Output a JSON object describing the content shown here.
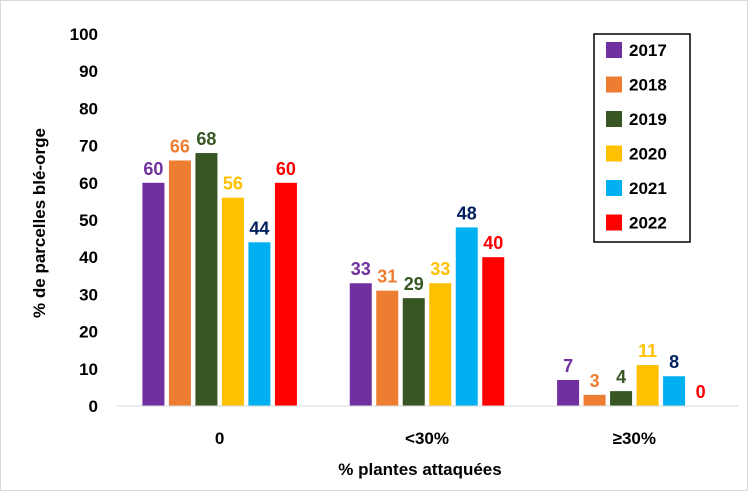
{
  "chart_data": {
    "type": "bar",
    "title": "",
    "xlabel": "% plantes attaquées",
    "ylabel": "% de parcelles blé-orge",
    "ylim": [
      0,
      100
    ],
    "yticks": [
      "0",
      "10",
      "20",
      "30",
      "40",
      "50",
      "60",
      "70",
      "80",
      "90",
      "100"
    ],
    "grid": false,
    "legend_position": "top-right",
    "categories": [
      "0",
      "<30%",
      "≥30%"
    ],
    "series": [
      {
        "name": "2017",
        "color": "#7030A0",
        "label_color": "#7030A0",
        "values": [
          60,
          33,
          7
        ]
      },
      {
        "name": "2018",
        "color": "#ED7D31",
        "label_color": "#ED7D31",
        "values": [
          66,
          31,
          3
        ]
      },
      {
        "name": "2019",
        "color": "#375623",
        "label_color": "#375623",
        "values": [
          68,
          29,
          4
        ]
      },
      {
        "name": "2020",
        "color": "#FFC000",
        "label_color": "#FFC000",
        "values": [
          56,
          33,
          11
        ]
      },
      {
        "name": "2021",
        "color": "#00B0F0",
        "label_color": "#002060",
        "values": [
          44,
          48,
          8
        ]
      },
      {
        "name": "2022",
        "color": "#FF0000",
        "label_color": "#FF0000",
        "values": [
          60,
          40,
          0
        ]
      }
    ]
  }
}
